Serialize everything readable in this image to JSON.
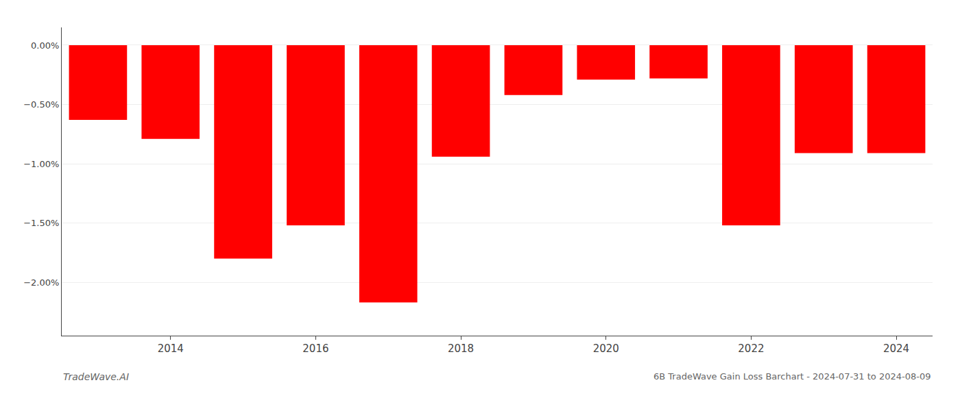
{
  "chart_data": {
    "type": "bar",
    "categories": [
      null,
      "2014",
      null,
      "2016",
      null,
      "2018",
      null,
      "2020",
      null,
      "2022",
      null,
      "2024"
    ],
    "values": [
      -0.63,
      -0.79,
      -1.8,
      -1.52,
      -2.17,
      -0.94,
      -0.42,
      -0.29,
      -0.28,
      -1.52,
      -0.91,
      -0.91
    ],
    "color": "#ff0000",
    "ylim": [
      -2.45,
      0.15
    ],
    "yticks": [
      {
        "value": 0.0,
        "label": "0.00%"
      },
      {
        "value": -0.5,
        "label": "−0.50%"
      },
      {
        "value": -1.0,
        "label": "−1.00%"
      },
      {
        "value": -1.5,
        "label": "−1.50%"
      },
      {
        "value": -2.0,
        "label": "−2.00%"
      }
    ],
    "grid": true,
    "annotations": [
      "TradeWave.AI",
      "6B TradeWave Gain Loss Barchart - 2024-07-31 to 2024-08-09"
    ]
  }
}
